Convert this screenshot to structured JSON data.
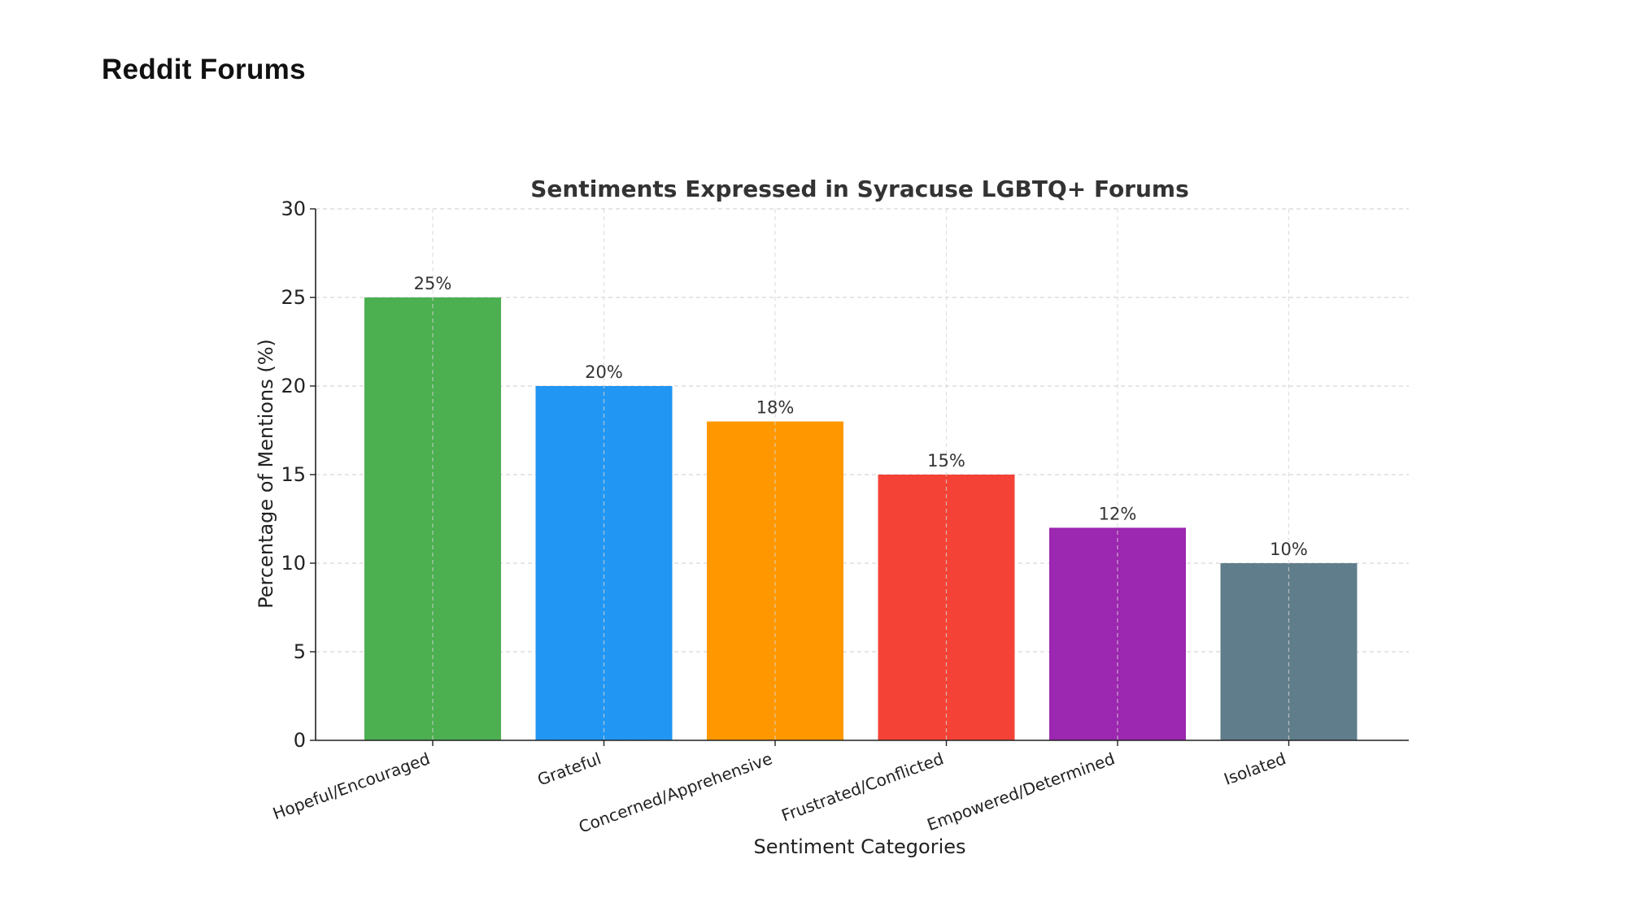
{
  "page": {
    "heading": "Reddit Forums"
  },
  "chart_data": {
    "type": "bar",
    "title": "Sentiments Expressed in Syracuse LGBTQ+ Forums",
    "xlabel": "Sentiment Categories",
    "ylabel": "Percentage of Mentions (%)",
    "ylim": [
      0,
      30
    ],
    "yticks": [
      0,
      5,
      10,
      15,
      20,
      25,
      30
    ],
    "grid": true,
    "categories": [
      "Hopeful/Encouraged",
      "Grateful",
      "Concerned/Apprehensive",
      "Frustrated/Conflicted",
      "Empowered/Determined",
      "Isolated"
    ],
    "values": [
      25,
      20,
      18,
      15,
      12,
      10
    ],
    "value_labels": [
      "25%",
      "20%",
      "18%",
      "15%",
      "12%",
      "10%"
    ],
    "colors": [
      "#4caf50",
      "#2196f3",
      "#ff9800",
      "#f44336",
      "#9c27b0",
      "#607d8b"
    ]
  }
}
